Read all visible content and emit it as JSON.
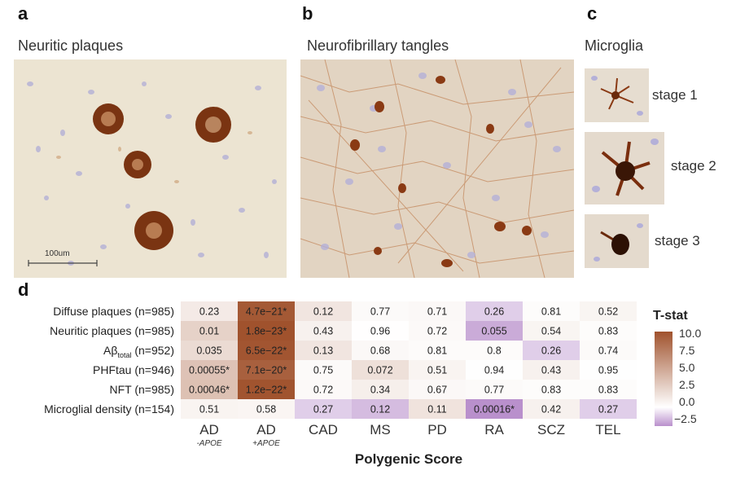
{
  "panels": {
    "a": {
      "letter": "a",
      "title": "Neuritic plaques",
      "scalebar": "100um"
    },
    "b": {
      "letter": "b",
      "title": "Neurofibrillary tangles"
    },
    "c": {
      "letter": "c",
      "title": "Microglia",
      "stages": [
        "stage 1",
        "stage 2",
        "stage 3"
      ]
    },
    "d": {
      "letter": "d"
    }
  },
  "chart_data": {
    "type": "heatmap",
    "xlabel": "Polygenic Score",
    "columns": [
      {
        "label": "AD",
        "sub": "-APOE"
      },
      {
        "label": "AD",
        "sub": "+APOE"
      },
      {
        "label": "CAD",
        "sub": ""
      },
      {
        "label": "MS",
        "sub": ""
      },
      {
        "label": "PD",
        "sub": ""
      },
      {
        "label": "RA",
        "sub": ""
      },
      {
        "label": "SCZ",
        "sub": ""
      },
      {
        "label": "TEL",
        "sub": ""
      }
    ],
    "rows": [
      {
        "label": "Diffuse plaques (n=985)",
        "label_main": "Diffuse plaques (n=985)",
        "label_sub": "",
        "label_tail": ""
      },
      {
        "label": "Neuritic plaques (n=985)",
        "label_main": "Neuritic plaques (n=985)",
        "label_sub": "",
        "label_tail": ""
      },
      {
        "label": "Aβtotal (n=952)",
        "label_main": "Aβ",
        "label_sub": "total",
        "label_tail": " (n=952)"
      },
      {
        "label": "PHFtau (n=946)",
        "label_main": "PHFtau (n=946)",
        "label_sub": "",
        "label_tail": ""
      },
      {
        "label": "NFT (n=985)",
        "label_main": "NFT (n=985)",
        "label_sub": "",
        "label_tail": ""
      },
      {
        "label": "Microglial density (n=154)",
        "label_main": "Microglial density (n=154)",
        "label_sub": "",
        "label_tail": ""
      }
    ],
    "cell_labels": [
      [
        "0.23",
        "4.7e−21*",
        "0.12",
        "0.77",
        "0.71",
        "0.26",
        "0.81",
        "0.52"
      ],
      [
        "0.01",
        "1.8e−23*",
        "0.43",
        "0.96",
        "0.72",
        "0.055",
        "0.54",
        "0.83"
      ],
      [
        "0.035",
        "6.5e−22*",
        "0.13",
        "0.68",
        "0.81",
        "0.8",
        "0.26",
        "0.74"
      ],
      [
        "0.00055*",
        "7.1e−20*",
        "0.75",
        "0.072",
        "0.51",
        "0.94",
        "0.43",
        "0.95"
      ],
      [
        "0.00046*",
        "1.2e−22*",
        "0.72",
        "0.34",
        "0.67",
        "0.77",
        "0.83",
        "0.83"
      ],
      [
        "0.51",
        "0.58",
        "0.27",
        "0.12",
        "0.11",
        "0.00016*",
        "0.42",
        "0.27"
      ]
    ],
    "t_stat": [
      [
        1.2,
        9.6,
        1.5,
        0.3,
        0.4,
        -1.1,
        0.2,
        0.6
      ],
      [
        2.6,
        10.0,
        0.8,
        0.05,
        0.35,
        -1.9,
        0.6,
        0.2
      ],
      [
        2.1,
        9.8,
        1.5,
        0.4,
        0.25,
        0.25,
        -1.1,
        0.3
      ],
      [
        3.5,
        9.2,
        0.3,
        1.8,
        0.65,
        0.07,
        0.8,
        0.06
      ],
      [
        3.6,
        9.9,
        0.35,
        0.95,
        0.4,
        0.3,
        0.2,
        0.2
      ],
      [
        0.65,
        0.55,
        -1.1,
        -1.5,
        1.6,
        -2.5,
        0.8,
        -1.1
      ]
    ],
    "legend": {
      "title": "T-stat",
      "ticks": [
        "10.0",
        "7.5",
        "5.0",
        "2.5",
        "0.0",
        "−2.5"
      ],
      "range": [
        -2.5,
        10.0
      ]
    },
    "colors": {
      "high": "#a0522d",
      "zero": "#ffffff",
      "low": "#b990cc"
    }
  }
}
